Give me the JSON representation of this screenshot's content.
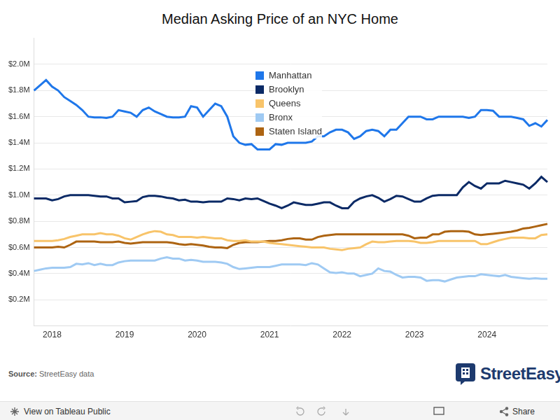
{
  "chart_data": {
    "type": "line",
    "title": "Median Asking Price of an NYC Home",
    "categories": [
      null,
      null,
      null,
      "2018",
      null,
      null,
      null,
      null,
      null,
      null,
      null,
      null,
      null,
      null,
      null,
      "2019",
      null,
      null,
      null,
      null,
      null,
      null,
      null,
      null,
      null,
      null,
      null,
      "2020",
      null,
      null,
      null,
      null,
      null,
      null,
      null,
      null,
      null,
      null,
      null,
      "2021",
      null,
      null,
      null,
      null,
      null,
      null,
      null,
      null,
      null,
      null,
      null,
      "2022",
      null,
      null,
      null,
      null,
      null,
      null,
      null,
      null,
      null,
      null,
      null,
      "2023",
      null,
      null,
      null,
      null,
      null,
      null,
      null,
      null,
      null,
      null,
      null,
      "2024",
      null,
      null,
      null,
      null,
      null,
      null,
      null,
      null,
      null,
      null
    ],
    "series": [
      {
        "name": "Manhattan",
        "color": "#1f77ea",
        "values": [
          1.8,
          1.84,
          1.88,
          1.83,
          1.8,
          1.75,
          1.72,
          1.69,
          1.65,
          1.6,
          1.595,
          1.595,
          1.59,
          1.6,
          1.65,
          1.64,
          1.63,
          1.6,
          1.65,
          1.67,
          1.64,
          1.62,
          1.6,
          1.595,
          1.595,
          1.6,
          1.68,
          1.67,
          1.6,
          1.65,
          1.7,
          1.68,
          1.6,
          1.45,
          1.4,
          1.385,
          1.39,
          1.35,
          1.35,
          1.35,
          1.39,
          1.385,
          1.4,
          1.4,
          1.4,
          1.4,
          1.41,
          1.45,
          1.45,
          1.48,
          1.5,
          1.5,
          1.48,
          1.43,
          1.45,
          1.49,
          1.5,
          1.49,
          1.45,
          1.5,
          1.5,
          1.55,
          1.6,
          1.6,
          1.6,
          1.58,
          1.58,
          1.6,
          1.6,
          1.6,
          1.6,
          1.6,
          1.59,
          1.6,
          1.65,
          1.65,
          1.645,
          1.6,
          1.6,
          1.6,
          1.59,
          1.58,
          1.53,
          1.55,
          1.525,
          1.575
        ]
      },
      {
        "name": "Brooklyn",
        "color": "#0b2a66",
        "values": [
          0.975,
          0.975,
          0.975,
          0.96,
          0.97,
          0.99,
          1.0,
          1.0,
          1.0,
          1.0,
          0.995,
          0.99,
          0.99,
          0.975,
          0.975,
          0.945,
          0.95,
          0.955,
          0.985,
          0.995,
          0.995,
          0.99,
          0.98,
          0.975,
          0.96,
          0.965,
          0.95,
          0.95,
          0.945,
          0.95,
          0.95,
          0.95,
          0.975,
          0.97,
          0.96,
          0.975,
          0.97,
          0.975,
          0.955,
          0.935,
          0.92,
          0.9,
          0.92,
          0.945,
          0.935,
          0.925,
          0.925,
          0.935,
          0.945,
          0.945,
          0.92,
          0.9,
          0.9,
          0.95,
          0.975,
          0.99,
          1.0,
          0.98,
          0.95,
          0.97,
          0.995,
          0.99,
          0.97,
          0.95,
          0.95,
          0.975,
          0.995,
          1.0,
          1.0,
          1.0,
          1.0,
          1.06,
          1.1,
          1.07,
          1.05,
          1.09,
          1.09,
          1.09,
          1.11,
          1.1,
          1.09,
          1.08,
          1.05,
          1.09,
          1.14,
          1.1
        ]
      },
      {
        "name": "Queens",
        "color": "#f8c46a",
        "values": [
          0.65,
          0.65,
          0.65,
          0.65,
          0.655,
          0.665,
          0.68,
          0.69,
          0.7,
          0.7,
          0.7,
          0.71,
          0.7,
          0.7,
          0.69,
          0.67,
          0.66,
          0.68,
          0.7,
          0.715,
          0.725,
          0.72,
          0.7,
          0.695,
          0.68,
          0.68,
          0.68,
          0.675,
          0.68,
          0.675,
          0.67,
          0.67,
          0.655,
          0.65,
          0.65,
          0.655,
          0.645,
          0.645,
          0.645,
          0.635,
          0.63,
          0.625,
          0.62,
          0.615,
          0.61,
          0.605,
          0.6,
          0.6,
          0.6,
          0.59,
          0.585,
          0.58,
          0.59,
          0.595,
          0.6,
          0.625,
          0.645,
          0.64,
          0.64,
          0.645,
          0.65,
          0.65,
          0.65,
          0.645,
          0.635,
          0.635,
          0.64,
          0.65,
          0.65,
          0.65,
          0.65,
          0.65,
          0.65,
          0.65,
          0.625,
          0.625,
          0.64,
          0.655,
          0.665,
          0.675,
          0.675,
          0.675,
          0.67,
          0.67,
          0.695,
          0.7
        ]
      },
      {
        "name": "Bronx",
        "color": "#9fcaf3",
        "values": [
          0.42,
          0.43,
          0.44,
          0.445,
          0.445,
          0.445,
          0.45,
          0.475,
          0.47,
          0.48,
          0.465,
          0.475,
          0.465,
          0.465,
          0.485,
          0.495,
          0.5,
          0.5,
          0.5,
          0.5,
          0.5,
          0.515,
          0.525,
          0.515,
          0.515,
          0.5,
          0.505,
          0.5,
          0.49,
          0.49,
          0.49,
          0.485,
          0.475,
          0.45,
          0.435,
          0.44,
          0.445,
          0.45,
          0.45,
          0.45,
          0.46,
          0.47,
          0.47,
          0.47,
          0.47,
          0.465,
          0.48,
          0.47,
          0.44,
          0.41,
          0.405,
          0.41,
          0.4,
          0.4,
          0.38,
          0.39,
          0.4,
          0.44,
          0.42,
          0.415,
          0.39,
          0.37,
          0.375,
          0.375,
          0.37,
          0.345,
          0.35,
          0.35,
          0.34,
          0.355,
          0.37,
          0.375,
          0.38,
          0.38,
          0.395,
          0.39,
          0.385,
          0.38,
          0.39,
          0.375,
          0.37,
          0.365,
          0.36,
          0.365,
          0.36,
          0.36
        ]
      },
      {
        "name": "Staten Island",
        "color": "#ad6412",
        "values": [
          0.6,
          0.6,
          0.6,
          0.6,
          0.605,
          0.6,
          0.62,
          0.645,
          0.645,
          0.645,
          0.645,
          0.64,
          0.64,
          0.64,
          0.645,
          0.635,
          0.63,
          0.635,
          0.64,
          0.64,
          0.64,
          0.64,
          0.64,
          0.635,
          0.625,
          0.62,
          0.625,
          0.62,
          0.615,
          0.605,
          0.6,
          0.6,
          0.595,
          0.62,
          0.635,
          0.64,
          0.64,
          0.64,
          0.645,
          0.65,
          0.65,
          0.655,
          0.665,
          0.67,
          0.67,
          0.66,
          0.66,
          0.68,
          0.69,
          0.695,
          0.7,
          0.7,
          0.7,
          0.7,
          0.7,
          0.7,
          0.7,
          0.7,
          0.7,
          0.7,
          0.7,
          0.7,
          0.69,
          0.67,
          0.675,
          0.675,
          0.7,
          0.7,
          0.72,
          0.725,
          0.725,
          0.725,
          0.72,
          0.7,
          0.695,
          0.7,
          0.705,
          0.71,
          0.715,
          0.72,
          0.73,
          0.745,
          0.75,
          0.76,
          0.77,
          0.78
        ]
      }
    ],
    "ylim": [
      0,
      2.2
    ],
    "yticks": [
      {
        "value": 0.2,
        "label": "$0.2M"
      },
      {
        "value": 0.4,
        "label": "$0.4M"
      },
      {
        "value": 0.6,
        "label": "$0.6M"
      },
      {
        "value": 0.8,
        "label": "$0.8M"
      },
      {
        "value": 1.0,
        "label": "$1.0M"
      },
      {
        "value": 1.2,
        "label": "$1.2M"
      },
      {
        "value": 1.4,
        "label": "$1.4M"
      },
      {
        "value": 1.6,
        "label": "$1.6M"
      },
      {
        "value": 1.8,
        "label": "$1.8M"
      },
      {
        "value": 2.0,
        "label": "$2.0M"
      }
    ],
    "grid": true,
    "legend": "top"
  },
  "footer": {
    "source_label": "Source:",
    "source": "StreetEasy data",
    "logo": "StreetEasy",
    "toolbar_left": "View on Tableau Public",
    "toolbar_right": "Share"
  }
}
